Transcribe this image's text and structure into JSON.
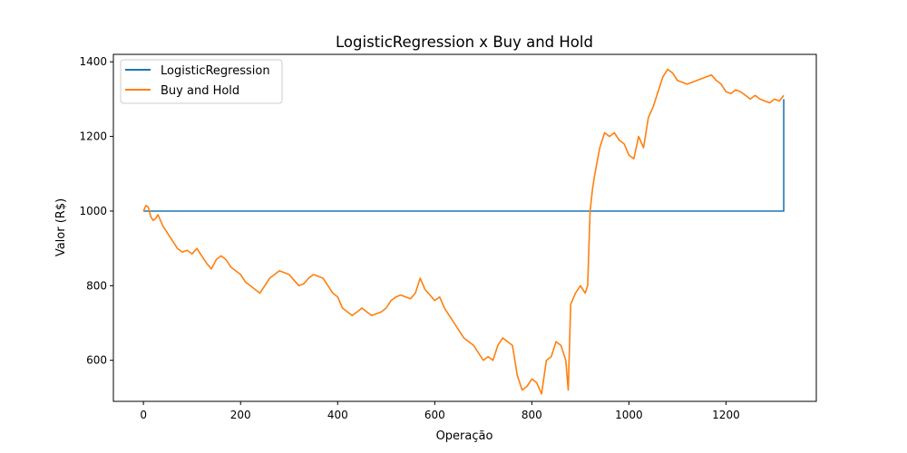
{
  "chart_data": {
    "type": "line",
    "title": "LogisticRegression x Buy and Hold",
    "xlabel": "Operação",
    "ylabel": "Valor (R$)",
    "xlim": [
      -62,
      1386
    ],
    "ylim": [
      490,
      1420
    ],
    "xticks": [
      0,
      200,
      400,
      600,
      800,
      1000,
      1200
    ],
    "yticks": [
      600,
      800,
      1000,
      1200,
      1400
    ],
    "grid": false,
    "legend_position": "top-left",
    "series": [
      {
        "name": "LogisticRegression",
        "color": "#1f77b4",
        "x": [
          0,
          1319,
          1319
        ],
        "y": [
          1000,
          1000,
          1300
        ]
      },
      {
        "name": "Buy and Hold",
        "color": "#ff7f0e",
        "x": [
          0,
          5,
          10,
          15,
          20,
          25,
          30,
          40,
          50,
          60,
          70,
          80,
          90,
          100,
          110,
          120,
          130,
          140,
          150,
          160,
          170,
          180,
          190,
          200,
          210,
          220,
          230,
          240,
          250,
          260,
          270,
          280,
          290,
          300,
          310,
          320,
          330,
          340,
          350,
          360,
          370,
          380,
          390,
          400,
          410,
          420,
          430,
          440,
          450,
          460,
          470,
          480,
          490,
          500,
          510,
          520,
          530,
          540,
          550,
          560,
          570,
          580,
          590,
          600,
          610,
          620,
          630,
          640,
          650,
          660,
          670,
          680,
          690,
          700,
          710,
          720,
          730,
          740,
          750,
          760,
          770,
          780,
          790,
          800,
          810,
          820,
          830,
          840,
          850,
          860,
          870,
          875,
          880,
          890,
          900,
          910,
          915,
          920,
          925,
          930,
          940,
          950,
          960,
          970,
          980,
          990,
          1000,
          1010,
          1020,
          1030,
          1040,
          1050,
          1060,
          1070,
          1080,
          1090,
          1100,
          1110,
          1120,
          1130,
          1140,
          1150,
          1160,
          1170,
          1180,
          1190,
          1200,
          1210,
          1220,
          1230,
          1240,
          1250,
          1260,
          1270,
          1280,
          1290,
          1300,
          1310,
          1319
        ],
        "y": [
          1000,
          1015,
          1010,
          985,
          975,
          980,
          990,
          960,
          940,
          920,
          900,
          890,
          895,
          885,
          900,
          880,
          860,
          845,
          870,
          880,
          870,
          850,
          840,
          830,
          810,
          800,
          790,
          780,
          800,
          820,
          830,
          840,
          835,
          830,
          815,
          800,
          805,
          820,
          830,
          825,
          820,
          800,
          780,
          770,
          740,
          730,
          720,
          730,
          740,
          730,
          720,
          725,
          730,
          740,
          760,
          770,
          775,
          770,
          765,
          780,
          820,
          790,
          775,
          760,
          770,
          740,
          720,
          700,
          680,
          660,
          650,
          640,
          620,
          600,
          610,
          600,
          640,
          660,
          650,
          640,
          560,
          520,
          530,
          550,
          540,
          510,
          600,
          610,
          650,
          640,
          600,
          520,
          750,
          780,
          800,
          780,
          800,
          1000,
          1060,
          1100,
          1170,
          1210,
          1200,
          1210,
          1190,
          1180,
          1150,
          1140,
          1200,
          1170,
          1250,
          1280,
          1320,
          1360,
          1380,
          1370,
          1350,
          1345,
          1340,
          1345,
          1350,
          1355,
          1360,
          1365,
          1350,
          1340,
          1320,
          1315,
          1325,
          1320,
          1310,
          1300,
          1310,
          1300,
          1295,
          1290,
          1300,
          1295,
          1310
        ]
      }
    ]
  }
}
